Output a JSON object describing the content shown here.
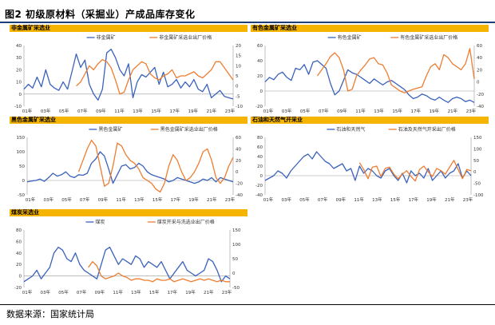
{
  "figure": {
    "title": "图2 初级原材料（采掘业）产成品库存变化",
    "source": "数据来源：国家统计局"
  },
  "colors": {
    "series1": "#3a62bc",
    "series2": "#ed7d31",
    "header": "#f5b400",
    "rule": "#1f3f78"
  },
  "chart_data": [
    {
      "type": "line",
      "title": "非金属矿采选业",
      "series": [
        {
          "name": "非金属矿",
          "axis": "left",
          "values": [
            4,
            8,
            5,
            14,
            6,
            20,
            8,
            5,
            3,
            10,
            4,
            18,
            33,
            22,
            28,
            8,
            0,
            -5,
            4,
            34,
            37,
            30,
            20,
            15,
            25,
            -3,
            10,
            16,
            14,
            18,
            22,
            8,
            18,
            6,
            8,
            12,
            5,
            10,
            6,
            12,
            4,
            2,
            8,
            -3,
            0,
            3,
            -2,
            -3,
            -4
          ]
        },
        {
          "name": "非金属矿采选业出厂价格",
          "axis": "right",
          "values": [
            null,
            null,
            null,
            null,
            null,
            null,
            null,
            null,
            null,
            null,
            null,
            null,
            0,
            2,
            6,
            10,
            8,
            11,
            13,
            12,
            9,
            3,
            -4,
            -3,
            3,
            8,
            10,
            12,
            11,
            6,
            4,
            3,
            5,
            6,
            8,
            4,
            5,
            5,
            6,
            7,
            5,
            4,
            6,
            8,
            12,
            12,
            9,
            6,
            3
          ]
        }
      ],
      "x_ticks": [
        "01年",
        "03年",
        "05年",
        "07年",
        "09年",
        "11年",
        "13年",
        "15年",
        "17年",
        "19年",
        "21年",
        "23年"
      ],
      "y_left": {
        "min": -10,
        "max": 40,
        "ticks": [
          -10,
          0,
          10,
          20,
          30,
          40
        ]
      },
      "y_right": {
        "min": -10,
        "max": 20,
        "ticks": [
          -10,
          -5,
          0,
          5,
          10,
          15,
          20
        ]
      }
    },
    {
      "type": "line",
      "title": "有色金属矿采选业",
      "series": [
        {
          "name": "有色金属矿",
          "axis": "left",
          "values": [
            12,
            18,
            15,
            22,
            25,
            18,
            14,
            30,
            28,
            35,
            22,
            38,
            40,
            35,
            30,
            10,
            -5,
            0,
            14,
            28,
            24,
            22,
            18,
            14,
            10,
            16,
            12,
            8,
            12,
            14,
            10,
            6,
            2,
            -5,
            -10,
            -8,
            -4,
            -6,
            -10,
            -12,
            -8,
            -12,
            -15,
            -10,
            -8,
            -10,
            -14,
            -12,
            -15
          ]
        },
        {
          "name": "有色金属矿采选业出厂价格",
          "axis": "right",
          "values": [
            null,
            null,
            null,
            null,
            null,
            null,
            null,
            null,
            null,
            null,
            null,
            null,
            10,
            20,
            30,
            42,
            48,
            40,
            20,
            -15,
            -12,
            10,
            20,
            28,
            38,
            40,
            30,
            28,
            15,
            -5,
            -10,
            -15,
            -18,
            -15,
            -12,
            -10,
            -8,
            10,
            25,
            30,
            20,
            45,
            40,
            30,
            25,
            20,
            30,
            55,
            5
          ]
        }
      ],
      "x_ticks": [
        "01年",
        "03年",
        "05年",
        "07年",
        "09年",
        "11年",
        "13年",
        "15年",
        "17年",
        "19年",
        "21年",
        "23年"
      ],
      "y_left": {
        "min": -20,
        "max": 60,
        "ticks": [
          -20,
          0,
          20,
          40,
          60
        ]
      },
      "y_right": {
        "min": -40,
        "max": 60,
        "ticks": [
          -40,
          -20,
          0,
          20,
          40,
          60
        ]
      }
    },
    {
      "type": "line",
      "title": "黑色金属矿采选业",
      "series": [
        {
          "name": "黑色金属矿",
          "axis": "left",
          "values": [
            -5,
            -2,
            0,
            5,
            -3,
            10,
            25,
            15,
            20,
            30,
            15,
            10,
            20,
            18,
            25,
            60,
            75,
            100,
            85,
            40,
            -10,
            20,
            50,
            55,
            40,
            45,
            60,
            50,
            30,
            20,
            15,
            10,
            5,
            -5,
            0,
            10,
            5,
            0,
            -5,
            -10,
            -5,
            5,
            0,
            10,
            -5,
            10,
            5,
            0,
            -5
          ]
        },
        {
          "name": "黑色金属矿采选业出厂价格",
          "axis": "right",
          "values": [
            null,
            null,
            null,
            null,
            null,
            null,
            null,
            null,
            null,
            null,
            null,
            null,
            0,
            20,
            40,
            55,
            45,
            10,
            -25,
            -20,
            10,
            50,
            45,
            30,
            20,
            15,
            5,
            -10,
            -15,
            -20,
            -30,
            -35,
            -20,
            10,
            30,
            20,
            0,
            -15,
            -10,
            0,
            15,
            35,
            40,
            20,
            -10,
            -20,
            -10,
            10,
            25
          ]
        }
      ],
      "x_ticks": [
        "01年",
        "03年",
        "05年",
        "07年",
        "09年",
        "11年",
        "13年",
        "15年",
        "17年",
        "19年",
        "21年",
        "23年"
      ],
      "y_left": {
        "min": -50,
        "max": 150,
        "ticks": [
          -50,
          0,
          50,
          100,
          150
        ]
      },
      "y_right": {
        "min": -40,
        "max": 60,
        "ticks": [
          -40,
          -20,
          0,
          20,
          40,
          60
        ]
      }
    },
    {
      "type": "line",
      "title": "石油和天然气开采业",
      "series": [
        {
          "name": "石油和天然气",
          "axis": "left",
          "values": [
            -10,
            -5,
            0,
            10,
            5,
            -5,
            10,
            20,
            30,
            40,
            45,
            35,
            50,
            40,
            30,
            25,
            15,
            20,
            25,
            10,
            15,
            -10,
            20,
            5,
            15,
            10,
            0,
            -5,
            10,
            15,
            0,
            -10,
            5,
            -15,
            10,
            0,
            5,
            -5,
            15,
            -10,
            0,
            10,
            -5,
            5,
            10,
            25,
            -5,
            10,
            0
          ]
        },
        {
          "name": "石油及天然气开采出厂价格",
          "axis": "right",
          "values": [
            null,
            null,
            null,
            null,
            null,
            null,
            null,
            null,
            null,
            null,
            null,
            null,
            null,
            null,
            null,
            null,
            null,
            null,
            null,
            null,
            null,
            null,
            40,
            10,
            -30,
            20,
            25,
            -20,
            15,
            20,
            -10,
            -30,
            -10,
            5,
            -20,
            -40,
            10,
            25,
            0,
            -20,
            15,
            5,
            -10,
            20,
            50,
            10,
            -30,
            10,
            5
          ]
        }
      ],
      "x_ticks": [
        "01年",
        "03年",
        "05年",
        "07年",
        "09年",
        "11年",
        "13年",
        "15年",
        "17年",
        "19年",
        "21年",
        "23年"
      ],
      "y_left": {
        "min": -40,
        "max": 80,
        "ticks": [
          -40,
          -20,
          0,
          20,
          40,
          60,
          80
        ]
      },
      "y_right": {
        "min": -100,
        "max": 150,
        "ticks": [
          -100,
          -50,
          0,
          50,
          100,
          150
        ]
      }
    },
    {
      "type": "line",
      "title": "煤炭采选业",
      "series": [
        {
          "name": "煤炭",
          "axis": "left",
          "values": [
            -10,
            -5,
            0,
            10,
            -5,
            5,
            15,
            40,
            50,
            45,
            30,
            25,
            40,
            20,
            10,
            5,
            0,
            -5,
            20,
            45,
            50,
            35,
            20,
            30,
            25,
            20,
            35,
            30,
            15,
            25,
            20,
            15,
            25,
            10,
            -5,
            5,
            15,
            25,
            10,
            5,
            0,
            5,
            10,
            30,
            25,
            10,
            -10,
            0,
            -5
          ]
        },
        {
          "name": "煤炭开采与洗选业出厂价格",
          "axis": "right",
          "values": [
            null,
            null,
            null,
            null,
            null,
            null,
            null,
            null,
            null,
            null,
            null,
            null,
            null,
            null,
            null,
            20,
            40,
            25,
            -10,
            -20,
            -15,
            -10,
            0,
            -10,
            -15,
            -25,
            -20,
            -20,
            -25,
            -25,
            -30,
            -20,
            -25,
            -25,
            -20,
            -30,
            -25,
            -20,
            -25,
            -30,
            -25,
            -20,
            -25,
            -20,
            -25,
            -30,
            -25,
            -30,
            -30
          ]
        }
      ],
      "x_ticks": [
        "01年",
        "03年",
        "05年",
        "07年",
        "09年",
        "11年",
        "13年",
        "15年",
        "17年",
        "19年",
        "21年",
        "23年"
      ],
      "y_left": {
        "min": -20,
        "max": 80,
        "ticks": [
          -20,
          0,
          20,
          40,
          60,
          80
        ]
      },
      "y_right": {
        "min": -50,
        "max": 150,
        "ticks": [
          -50,
          0,
          50,
          100,
          150
        ]
      }
    }
  ]
}
